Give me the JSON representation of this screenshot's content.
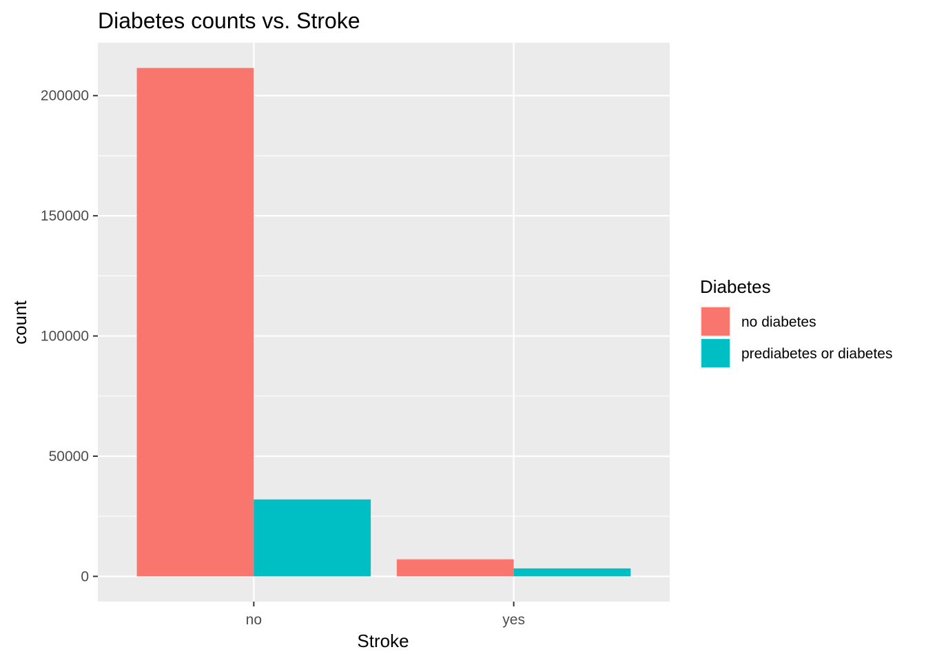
{
  "chart_data": {
    "type": "bar",
    "title": "Diabetes counts vs. Stroke",
    "xlabel": "Stroke",
    "ylabel": "count",
    "categories": [
      "no",
      "yes"
    ],
    "series": [
      {
        "name": "no diabetes",
        "values": [
          211500,
          7100
        ],
        "color": "#F8766D"
      },
      {
        "name": "prediabetes or diabetes",
        "values": [
          32000,
          3300
        ],
        "color": "#00BFC4"
      }
    ],
    "yticks": [
      0,
      50000,
      100000,
      150000,
      200000
    ],
    "ytick_labels": [
      "0",
      "50000",
      "100000",
      "150000",
      "200000"
    ],
    "ylim": [
      -10500,
      222000
    ],
    "grid": true,
    "panel_background": "#EBEBEB",
    "grid_color": "#FFFFFF",
    "legend": {
      "title": "Diabetes",
      "position": "right"
    }
  }
}
